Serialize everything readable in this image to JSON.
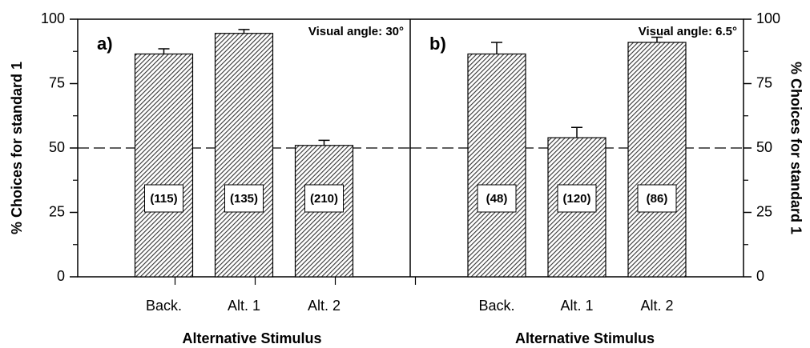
{
  "chart_data": [
    {
      "type": "bar",
      "panel_label": "a)",
      "annotation": "Visual angle: 30°",
      "categories": [
        "Back.",
        "Alt. 1",
        "Alt. 2"
      ],
      "values": [
        86.5,
        94.5,
        51
      ],
      "errors": [
        2,
        1.5,
        2
      ],
      "n_labels": [
        "(115)",
        "(135)",
        "(210)"
      ],
      "ylabel": "% Choices for standard 1",
      "xlabel": "Alternative Stimulus",
      "ylim": [
        0,
        100
      ],
      "yticks": [
        0,
        25,
        50,
        75,
        100
      ],
      "minor_yticks": [
        12.5,
        37.5,
        62.5,
        87.5
      ],
      "yaxis_side": "left",
      "ref_line": 50,
      "color": "#555555"
    },
    {
      "type": "bar",
      "panel_label": "b)",
      "annotation": "Visual angle: 6.5°",
      "categories": [
        "Back.",
        "Alt. 1",
        "Alt. 2"
      ],
      "values": [
        86.5,
        54,
        91
      ],
      "errors": [
        4.5,
        4,
        2
      ],
      "n_labels": [
        "(48)",
        "(120)",
        "(86)"
      ],
      "ylabel": "% Choices for standard 1",
      "xlabel": "Alternative Stimulus",
      "ylim": [
        0,
        100
      ],
      "yticks": [
        0,
        25,
        50,
        75,
        100
      ],
      "minor_yticks": [
        12.5,
        37.5,
        62.5,
        87.5
      ],
      "yaxis_side": "right",
      "ref_line": 50,
      "color": "#555555"
    }
  ]
}
